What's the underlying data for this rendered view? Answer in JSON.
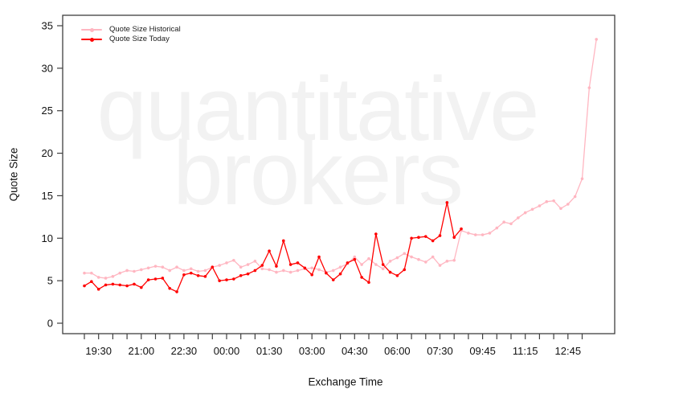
{
  "chart_data": {
    "type": "line",
    "title": "",
    "xlabel": "Exchange Time",
    "ylabel": "Quote Size",
    "ylim": [
      0,
      35.5
    ],
    "y_ticks": [
      0,
      5,
      10,
      15,
      20,
      25,
      30,
      35
    ],
    "grid": false,
    "legend_position": "top-left",
    "x_tick_labels": [
      "19:30",
      "21:00",
      "22:30",
      "00:00",
      "01:30",
      "03:00",
      "04:30",
      "06:00",
      "07:30",
      "09:45",
      "11:15",
      "12:45"
    ],
    "x_labeled_tick_indices": [
      1,
      4,
      7,
      10,
      13,
      16,
      19,
      22,
      25,
      28,
      31,
      34
    ],
    "x_minor_tick_count": 36,
    "points_per_minor_tick": 2,
    "series": [
      {
        "name": "Quote Size Historical",
        "color": "#FFB6C1",
        "values": [
          5.9,
          5.9,
          5.4,
          5.3,
          5.5,
          5.9,
          6.2,
          6.1,
          6.3,
          6.5,
          6.7,
          6.6,
          6.2,
          6.6,
          6.2,
          6.4,
          6.1,
          6.2,
          6.6,
          6.8,
          7.1,
          7.4,
          6.6,
          6.9,
          7.3,
          6.4,
          6.3,
          6.0,
          6.2,
          6.0,
          6.2,
          6.4,
          6.5,
          6.3,
          6.0,
          6.2,
          6.6,
          7.0,
          7.8,
          6.9,
          7.6,
          6.9,
          6.4,
          7.3,
          7.7,
          8.2,
          7.8,
          7.5,
          7.2,
          7.8,
          6.8,
          7.3,
          7.4,
          10.9,
          10.6,
          10.4,
          10.4,
          10.6,
          11.2,
          11.9,
          11.7,
          12.4,
          13.0,
          13.4,
          13.8,
          14.3,
          14.4,
          13.5,
          14.0,
          14.9,
          17.0,
          27.7,
          33.4
        ]
      },
      {
        "name": "Quote Size Today",
        "color": "#FF0000",
        "values": [
          4.4,
          4.9,
          4.0,
          4.5,
          4.6,
          4.5,
          4.4,
          4.6,
          4.2,
          5.1,
          5.2,
          5.3,
          4.1,
          3.7,
          5.7,
          5.9,
          5.6,
          5.5,
          6.6,
          5.0,
          5.1,
          5.2,
          5.6,
          5.8,
          6.2,
          6.8,
          8.5,
          6.7,
          9.7,
          6.9,
          7.1,
          6.5,
          5.7,
          7.8,
          5.9,
          5.1,
          5.8,
          7.1,
          7.5,
          5.4,
          4.8,
          10.5,
          6.9,
          6.0,
          5.6,
          6.3,
          10.0,
          10.1,
          10.2,
          9.7,
          10.3,
          14.2,
          10.1,
          11.1
        ]
      }
    ]
  },
  "axes": {
    "x_title": "Exchange Time",
    "y_title": "Quote Size"
  },
  "legend": {
    "items": [
      {
        "label": "Quote Size Historical",
        "color": "#FFB6C1"
      },
      {
        "label": "Quote Size Today",
        "color": "#FF0000"
      }
    ]
  },
  "watermark": {
    "line1": "quantitative",
    "line2": "brokers",
    "color": "#F2F2F2"
  },
  "style_colors": {
    "axis": "#3f3f3f",
    "tick_text": "#111111"
  }
}
